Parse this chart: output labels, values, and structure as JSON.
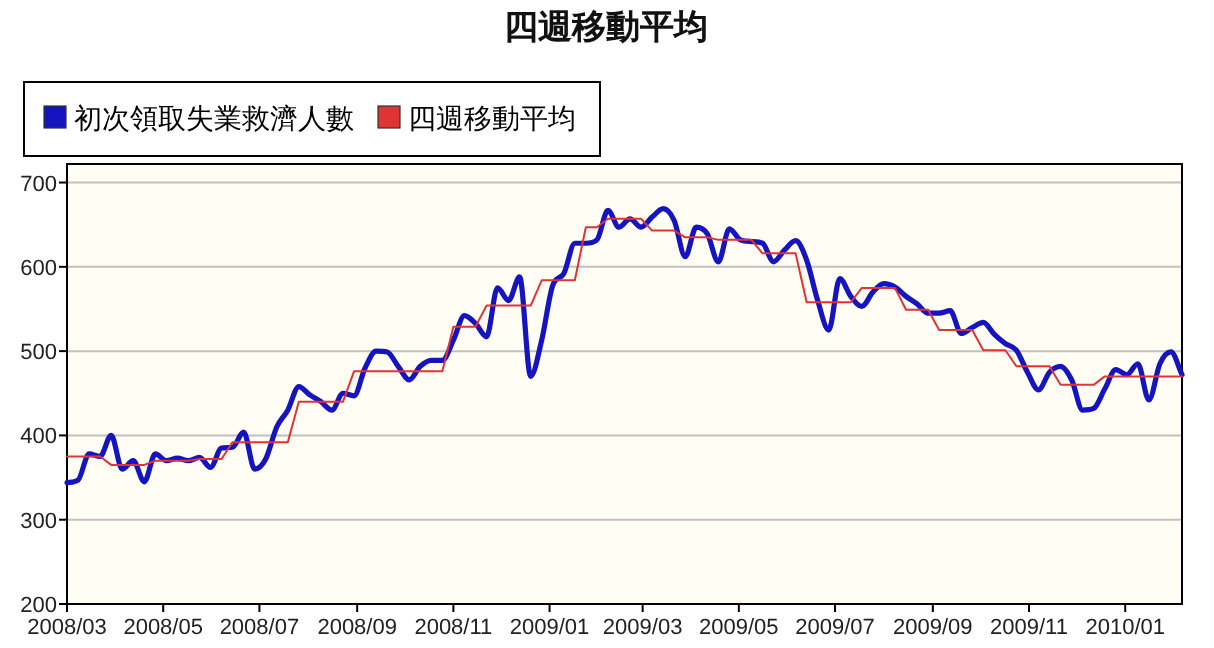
{
  "chart_data": {
    "type": "line",
    "title": "四週移動平均",
    "x": [
      "2008-03-01",
      "2008-03-08",
      "2008-03-15",
      "2008-03-22",
      "2008-03-29",
      "2008-04-05",
      "2008-04-12",
      "2008-04-19",
      "2008-04-26",
      "2008-05-03",
      "2008-05-10",
      "2008-05-17",
      "2008-05-24",
      "2008-05-31",
      "2008-06-07",
      "2008-06-14",
      "2008-06-21",
      "2008-06-28",
      "2008-07-05",
      "2008-07-12",
      "2008-07-19",
      "2008-07-26",
      "2008-08-02",
      "2008-08-09",
      "2008-08-16",
      "2008-08-23",
      "2008-08-30",
      "2008-09-06",
      "2008-09-13",
      "2008-09-20",
      "2008-09-27",
      "2008-10-04",
      "2008-10-11",
      "2008-10-18",
      "2008-10-25",
      "2008-11-01",
      "2008-11-08",
      "2008-11-15",
      "2008-11-22",
      "2008-11-29",
      "2008-12-06",
      "2008-12-13",
      "2008-12-20",
      "2008-12-27",
      "2009-01-03",
      "2009-01-10",
      "2009-01-17",
      "2009-01-24",
      "2009-01-31",
      "2009-02-07",
      "2009-02-14",
      "2009-02-21",
      "2009-02-28",
      "2009-03-07",
      "2009-03-14",
      "2009-03-21",
      "2009-03-28",
      "2009-04-04",
      "2009-04-11",
      "2009-04-18",
      "2009-04-25",
      "2009-05-02",
      "2009-05-09",
      "2009-05-16",
      "2009-05-23",
      "2009-05-30",
      "2009-06-06",
      "2009-06-13",
      "2009-06-20",
      "2009-06-27",
      "2009-07-04",
      "2009-07-11",
      "2009-07-18",
      "2009-07-25",
      "2009-08-01",
      "2009-08-08",
      "2009-08-15",
      "2009-08-22",
      "2009-08-29",
      "2009-09-05",
      "2009-09-12",
      "2009-09-19",
      "2009-09-26",
      "2009-10-03",
      "2009-10-10",
      "2009-10-17",
      "2009-10-24",
      "2009-10-31",
      "2009-11-07",
      "2009-11-14",
      "2009-11-21",
      "2009-11-28",
      "2009-12-05",
      "2009-12-12",
      "2009-12-19",
      "2009-12-26",
      "2010-01-02",
      "2010-01-09",
      "2010-01-16",
      "2010-01-23",
      "2010-01-30",
      "2010-02-06"
    ],
    "series": [
      {
        "name": "初次領取失業救濟人數",
        "color": "#1414c0",
        "values": [
          344,
          347,
          378,
          375,
          400,
          360,
          370,
          345,
          378,
          370,
          373,
          370,
          374,
          362,
          385,
          386,
          404,
          360,
          372,
          410,
          430,
          458,
          448,
          440,
          430,
          450,
          447,
          480,
          500,
          499,
          482,
          466,
          482,
          489,
          489,
          513,
          542,
          533,
          517,
          575,
          560,
          588,
          470,
          513,
          578,
          592,
          628,
          628,
          632,
          667,
          647,
          657,
          647,
          659,
          669,
          655,
          612,
          647,
          639,
          606,
          645,
          632,
          630,
          628,
          606,
          620,
          631,
          608,
          560,
          525,
          586,
          565,
          553,
          570,
          580,
          576,
          565,
          556,
          545,
          545,
          548,
          521,
          528,
          534,
          520,
          509,
          501,
          475,
          454,
          475,
          482,
          466,
          430,
          432,
          455,
          478,
          472,
          485,
          442,
          485,
          499,
          472
        ]
      },
      {
        "name": "四週移動平均",
        "color": "#e03434",
        "values": [
          375,
          375,
          375,
          375,
          365,
          365,
          365,
          365,
          370,
          370,
          370,
          370,
          372,
          372,
          372,
          392,
          392,
          392,
          392,
          392,
          392,
          440,
          440,
          440,
          440,
          440,
          476,
          476,
          476,
          476,
          476,
          476,
          476,
          476,
          476,
          529,
          529,
          529,
          554,
          554,
          554,
          554,
          554,
          584,
          584,
          584,
          584,
          647,
          647,
          657,
          657,
          657,
          657,
          643,
          643,
          643,
          635,
          635,
          635,
          632,
          632,
          632,
          632,
          616,
          616,
          616,
          616,
          558,
          558,
          558,
          558,
          558,
          575,
          575,
          575,
          575,
          549,
          549,
          549,
          525,
          525,
          525,
          525,
          501,
          501,
          501,
          482,
          482,
          482,
          482,
          460,
          460,
          460,
          460,
          470,
          470,
          470,
          470,
          470,
          470,
          470,
          470
        ]
      }
    ],
    "xlim": [
      "2008-03-01",
      "2010-02-06"
    ],
    "xticks": [
      {
        "value": "2008-03-01",
        "label": "2008/03"
      },
      {
        "value": "2008-05-01",
        "label": "2008/05"
      },
      {
        "value": "2008-07-01",
        "label": "2008/07"
      },
      {
        "value": "2008-09-01",
        "label": "2008/09"
      },
      {
        "value": "2008-11-01",
        "label": "2008/11"
      },
      {
        "value": "2009-01-01",
        "label": "2009/01"
      },
      {
        "value": "2009-03-01",
        "label": "2009/03"
      },
      {
        "value": "2009-05-01",
        "label": "2009/05"
      },
      {
        "value": "2009-07-01",
        "label": "2009/07"
      },
      {
        "value": "2009-09-01",
        "label": "2009/09"
      },
      {
        "value": "2009-11-01",
        "label": "2009/11"
      },
      {
        "value": "2010-01-01",
        "label": "2010/01"
      }
    ],
    "ylim": [
      200,
      722
    ],
    "yticks": [
      200,
      300,
      400,
      500,
      600,
      700
    ],
    "grid": "y",
    "legend": "top left",
    "marker": "none",
    "line_style": "solid"
  }
}
